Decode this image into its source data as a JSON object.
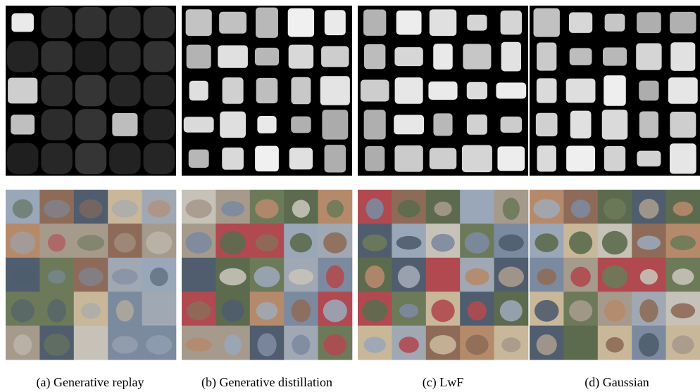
{
  "figure": {
    "panels": [
      {
        "caption": "(a) Generative replay"
      },
      {
        "caption": "(b) Generative distillation"
      },
      {
        "caption": "(c) LwF"
      },
      {
        "caption": "(d) Gaussian"
      }
    ]
  }
}
